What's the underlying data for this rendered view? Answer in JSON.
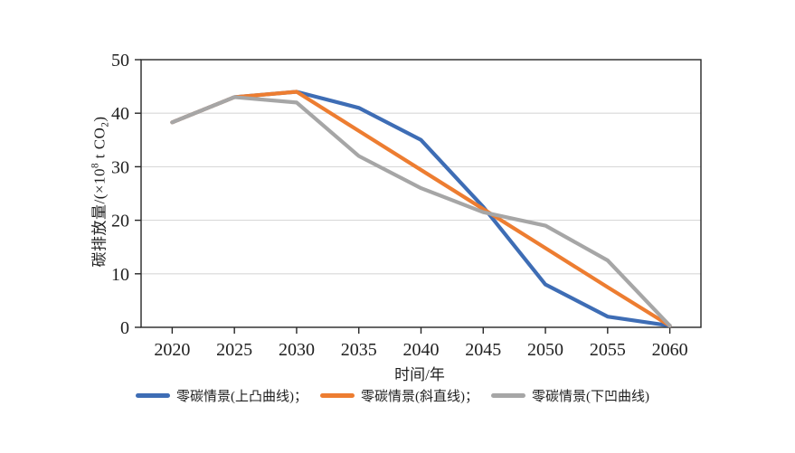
{
  "chart_data": {
    "type": "line",
    "title": "",
    "xlabel": "时间/年",
    "ylabel": "碳排放量/(×10⁸ t CO₂)",
    "ylabel_parts": {
      "p1": "碳排放量/(×10",
      "sup": "8",
      "p2": " t CO",
      "sub": "2",
      "p3": ")"
    },
    "categories": [
      "2020",
      "2025",
      "2030",
      "2035",
      "2040",
      "2045",
      "2050",
      "2055",
      "2060"
    ],
    "yticks": [
      0,
      10,
      20,
      30,
      40,
      50
    ],
    "ylim": [
      0,
      50
    ],
    "grid": "horizontal",
    "legend_position": "bottom",
    "series": [
      {
        "name": "零碳情景(上凸曲线)",
        "legend_label": "零碳情景(上凸曲线)；",
        "color": "#3E6DB5",
        "values": [
          38.3,
          43,
          44,
          41,
          35,
          22.5,
          8,
          2,
          0.3
        ]
      },
      {
        "name": "零碳情景(斜直线)",
        "legend_label": "零碳情景(斜直线)；",
        "color": "#ED7D31",
        "values": [
          38.3,
          43,
          44,
          36.7,
          29.4,
          22.1,
          14.8,
          7.5,
          0.3
        ]
      },
      {
        "name": "零碳情景(下凹曲线)",
        "legend_label": "零碳情景(下凹曲线)",
        "color": "#A6A6A6",
        "values": [
          38.3,
          43,
          42,
          32,
          26,
          21.5,
          19,
          12.5,
          0.3
        ]
      }
    ],
    "colors": {
      "axis": "#262626",
      "grid": "#D9D9D9",
      "background": "#FFFFFF",
      "tick_text": "#1F1F1F"
    }
  }
}
